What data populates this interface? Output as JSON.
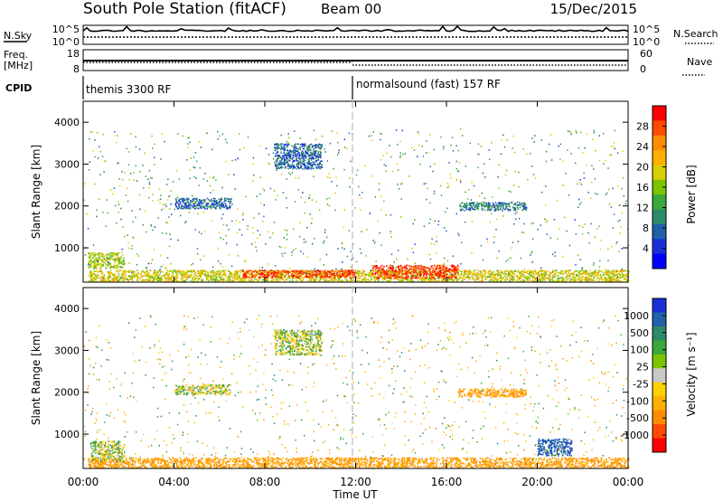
{
  "header": {
    "station": "South Pole Station (fitACF)",
    "beam": "Beam 00",
    "date": "15/Dec/2015"
  },
  "top_panels": {
    "nsky_label": "N.Sky",
    "nsearch_label": "N.Search",
    "freq_label_1": "Freq.",
    "freq_label_2": "[MHz]",
    "nave_label": "Nave",
    "cpid_label": "CPID",
    "nsky_tick_top": "10^5",
    "nsky_tick_bottom": "10^0",
    "nsearch_tick_top": "10^5",
    "nsearch_tick_bottom": "10^0",
    "freq_tick_top": "18",
    "freq_tick_bottom": "8",
    "nave_tick_top": "60",
    "nave_tick_bottom": "0",
    "cpid_1": "themis 3300 RF",
    "cpid_2": "normalsound (fast) 157 RF"
  },
  "power_colorbar": {
    "label": "Power [dB]",
    "ticks": [
      "28",
      "24",
      "20",
      "16",
      "12",
      "8",
      "4"
    ],
    "colors": [
      "#ff0000",
      "#ff4a00",
      "#ff8c00",
      "#ffb000",
      "#d8d000",
      "#7cc400",
      "#3aa83a",
      "#2a8a6a",
      "#2060a8",
      "#1830d8",
      "#0000ff"
    ]
  },
  "velocity_colorbar": {
    "label": "Velocity [m s⁻¹]",
    "ticks": [
      "1000",
      "500",
      "100",
      "25",
      "-25",
      "-100",
      "-500",
      "-1000"
    ],
    "colors": [
      "#1830d8",
      "#2060a8",
      "#2a8a6a",
      "#3aa83a",
      "#7cc400",
      "#c8c8c8",
      "#ffd000",
      "#ffb000",
      "#ff8c00",
      "#ff4a00",
      "#ff0000"
    ]
  },
  "axes": {
    "ylabel": "Slant Range [km]",
    "xlabel": "Time UT",
    "yticks": [
      "4000",
      "3000",
      "2000",
      "1000"
    ],
    "xticks": [
      "00:00",
      "04:00",
      "08:00",
      "12:00",
      "16:00",
      "20:00",
      "00:00"
    ]
  },
  "chart_data": [
    {
      "type": "heatmap",
      "name": "power",
      "x_range_hours": [
        0,
        24
      ],
      "y_range_km": [
        180,
        4500
      ],
      "regions": [
        {
          "t0": 0.2,
          "t1": 24,
          "r0": 200,
          "r1": 480,
          "power": 18
        },
        {
          "t0": 7,
          "t1": 12,
          "r0": 300,
          "r1": 480,
          "power": 28
        },
        {
          "t0": 12.7,
          "t1": 16.5,
          "r0": 280,
          "r1": 600,
          "power": 28
        },
        {
          "t0": 0.2,
          "t1": 1.8,
          "r0": 520,
          "r1": 900,
          "power": 16
        },
        {
          "t0": 8.4,
          "t1": 10.5,
          "r0": 2900,
          "r1": 3500,
          "power": 6
        },
        {
          "t0": 4.0,
          "t1": 6.5,
          "r0": 1950,
          "r1": 2200,
          "power": 6
        },
        {
          "t0": 16.5,
          "t1": 19.5,
          "r0": 1900,
          "r1": 2100,
          "power": 8
        }
      ]
    },
    {
      "type": "heatmap",
      "name": "velocity",
      "x_range_hours": [
        0,
        24
      ],
      "y_range_km": [
        180,
        4500
      ],
      "regions": [
        {
          "t0": 0.2,
          "t1": 24,
          "r0": 200,
          "r1": 450,
          "velocity": -300
        },
        {
          "t0": 0.3,
          "t1": 1.8,
          "r0": 350,
          "r1": 850,
          "velocity": 0
        },
        {
          "t0": 8.4,
          "t1": 10.5,
          "r0": 2900,
          "r1": 3500,
          "velocity": 0
        },
        {
          "t0": 4.0,
          "t1": 6.5,
          "r0": 1950,
          "r1": 2200,
          "velocity": 0
        },
        {
          "t0": 16.5,
          "t1": 19.5,
          "r0": 1900,
          "r1": 2100,
          "velocity": -300
        },
        {
          "t0": 20,
          "t1": 21.5,
          "r0": 500,
          "r1": 900,
          "velocity": 600
        }
      ]
    }
  ]
}
